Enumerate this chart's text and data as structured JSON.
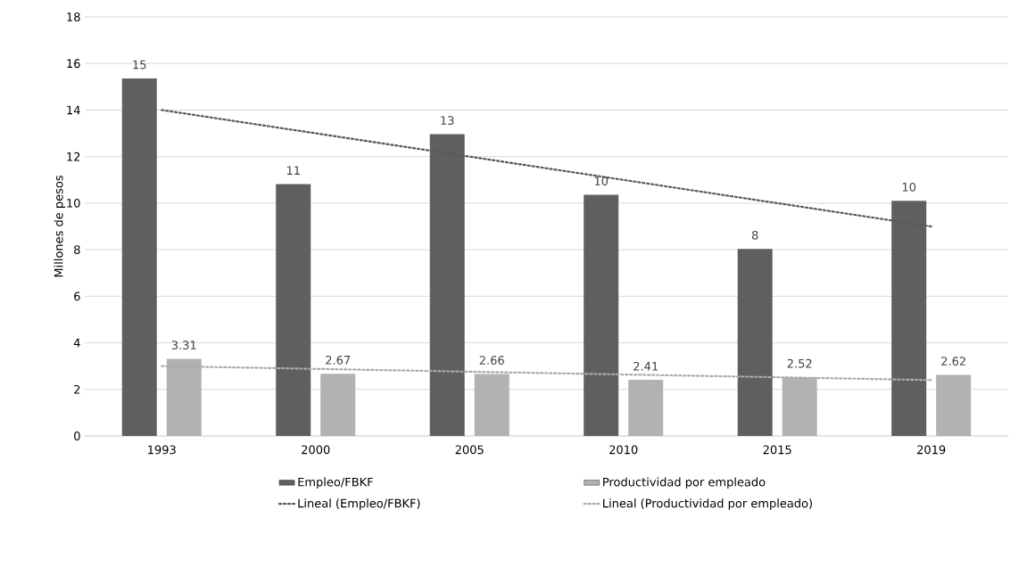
{
  "chart_data": {
    "type": "bar",
    "ylabel": "Millones de pesos",
    "categories": [
      "1993",
      "2000",
      "2005",
      "2010",
      "2015",
      "2019"
    ],
    "series": [
      {
        "name": "Empleo/FBKF",
        "color": "#5f5f5f",
        "values": [
          15.36,
          10.82,
          12.96,
          10.36,
          8.03,
          10.1
        ],
        "value_labels": [
          "15",
          "11",
          "13",
          "10",
          "8",
          "10"
        ]
      },
      {
        "name": "Productividad por empleado",
        "color": "#b2b2b2",
        "values": [
          3.31,
          2.67,
          2.66,
          2.41,
          2.52,
          2.62
        ],
        "value_labels": [
          "3.31",
          "2.67",
          "2.66",
          "2.41",
          "2.52",
          "2.62"
        ]
      },
      {
        "name": "Lineal (Empleo/FBKF)",
        "type": "line",
        "line_style": "dotted",
        "color": "#595959",
        "values": [
          14.0,
          13.0,
          12.0,
          11.0,
          10.0,
          9.0
        ]
      },
      {
        "name": "Lineal (Productividad por empleado)",
        "type": "line",
        "line_style": "dotted",
        "color": "#aaaaaa",
        "values": [
          3.0,
          2.88,
          2.76,
          2.64,
          2.52,
          2.4
        ]
      }
    ],
    "ylim": [
      0,
      18
    ],
    "yticks": [
      0,
      2,
      4,
      6,
      8,
      10,
      12,
      14,
      16,
      18
    ],
    "grid": "y",
    "legend": "bottom",
    "marker": "none"
  }
}
